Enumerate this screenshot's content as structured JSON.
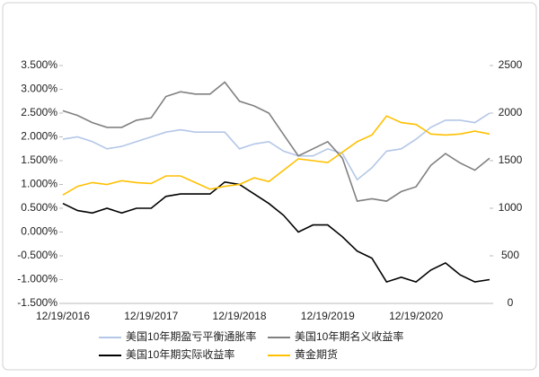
{
  "chart_data": {
    "type": "line",
    "categories": [
      "12/19/2016",
      null,
      null,
      null,
      null,
      null,
      "12/19/2017",
      null,
      null,
      null,
      null,
      null,
      "12/19/2018",
      null,
      null,
      null,
      null,
      null,
      "12/19/2019",
      null,
      null,
      null,
      null,
      null,
      "12/19/2020",
      null,
      null,
      null,
      null,
      null
    ],
    "series": [
      {
        "name": "美国10年期盈亏平衡通胀率",
        "color": "#b4c7e7",
        "values": [
          1.95,
          2.0,
          1.9,
          1.75,
          1.8,
          1.9,
          2.0,
          2.1,
          2.15,
          2.1,
          2.1,
          2.1,
          1.75,
          1.85,
          1.9,
          1.7,
          1.6,
          1.6,
          1.75,
          1.65,
          1.1,
          1.35,
          1.7,
          1.75,
          1.95,
          2.2,
          2.35,
          2.35,
          2.3,
          2.5
        ]
      },
      {
        "name": "美国10年期名义收益率",
        "color": "#808080",
        "values": [
          2.55,
          2.45,
          2.3,
          2.2,
          2.2,
          2.35,
          2.4,
          2.85,
          2.95,
          2.9,
          2.9,
          3.15,
          2.75,
          2.65,
          2.5,
          2.05,
          1.6,
          1.75,
          1.9,
          1.55,
          0.65,
          0.7,
          0.65,
          0.85,
          0.95,
          1.4,
          1.65,
          1.45,
          1.3,
          1.55
        ]
      },
      {
        "name": "美国10年期实际收益率",
        "color": "#000000",
        "values": [
          0.6,
          0.45,
          0.4,
          0.5,
          0.4,
          0.5,
          0.5,
          0.75,
          0.8,
          0.8,
          0.8,
          1.05,
          1.0,
          0.8,
          0.6,
          0.35,
          0.0,
          0.15,
          0.15,
          -0.1,
          -0.4,
          -0.55,
          -1.05,
          -0.95,
          -1.05,
          -0.8,
          -0.65,
          -0.9,
          -1.05,
          -1.0
        ]
      },
      {
        "name": "黄金期货",
        "color": "#ffc000",
        "axis": "y2",
        "values": [
          1140,
          1230,
          1270,
          1250,
          1290,
          1270,
          1260,
          1340,
          1340,
          1270,
          1200,
          1230,
          1250,
          1320,
          1280,
          1400,
          1520,
          1500,
          1480,
          1590,
          1700,
          1770,
          1970,
          1900,
          1880,
          1780,
          1770,
          1780,
          1810,
          1780
        ]
      }
    ],
    "ylim": [
      -1.5,
      3.5
    ],
    "yticks": [
      {
        "value": 3.5,
        "label": "3.500%"
      },
      {
        "value": 3.0,
        "label": "3.000%"
      },
      {
        "value": 2.5,
        "label": "2.500%"
      },
      {
        "value": 2.0,
        "label": "2.000%"
      },
      {
        "value": 1.5,
        "label": "1.500%"
      },
      {
        "value": 1.0,
        "label": "1.000%"
      },
      {
        "value": 0.5,
        "label": "0.500%"
      },
      {
        "value": 0.0,
        "label": "0.000%"
      },
      {
        "value": -0.5,
        "label": "-0.500%"
      },
      {
        "value": -1.0,
        "label": "-1.000%"
      },
      {
        "value": -1.5,
        "label": "-1.500%"
      }
    ],
    "y2lim": [
      0,
      2500
    ],
    "y2ticks": [
      0,
      500,
      1000,
      1500,
      2000,
      2500
    ],
    "legend": "bottom"
  }
}
